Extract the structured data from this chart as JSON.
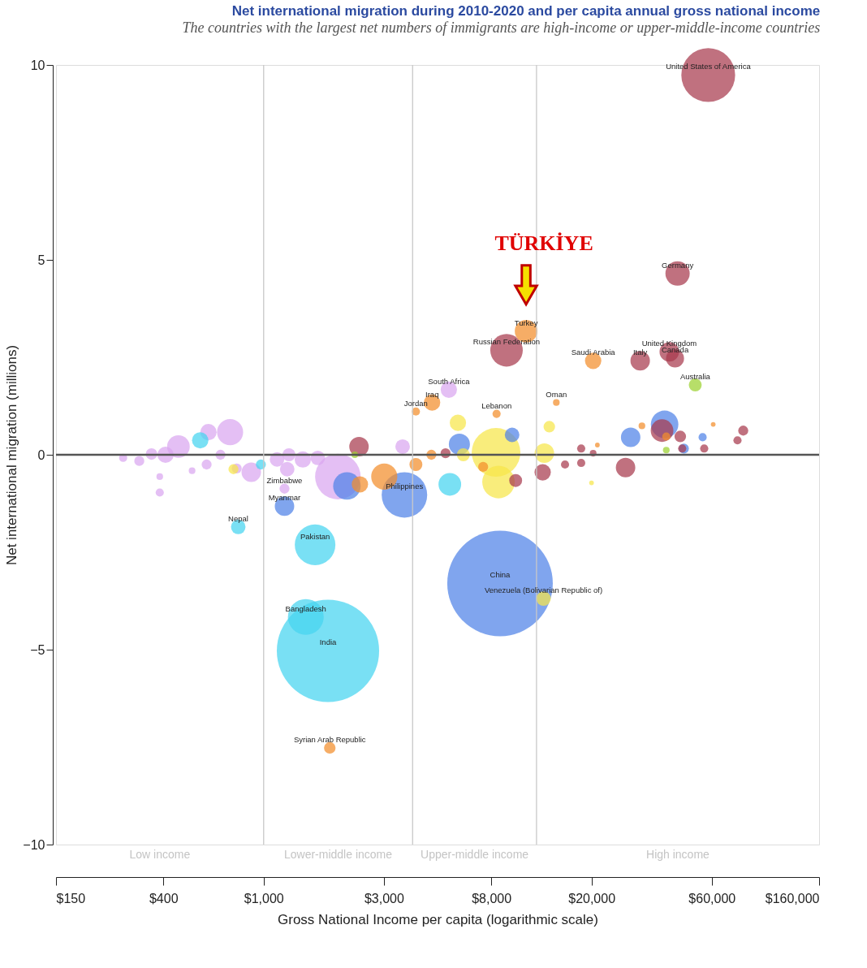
{
  "chart_data": {
    "type": "bubble",
    "title": "Net international migration during 2010-2020 and per capita annual gross national income",
    "subtitle": "The countries with the largest net numbers of immigrants are high-income or upper-middle-income countries",
    "xlabel": "Gross National Income per capita (logarithmic scale)",
    "ylabel": "Net international migration (millions)",
    "log": "x",
    "grid": false,
    "xlim": [
      150,
      160000
    ],
    "xticks": [
      {
        "value": 150,
        "label": "$150"
      },
      {
        "value": 400,
        "label": "$400"
      },
      {
        "value": 1000,
        "label": "$1,000"
      },
      {
        "value": 3000,
        "label": "$3,000"
      },
      {
        "value": 8000,
        "label": "$8,000"
      },
      {
        "value": 20000,
        "label": "$20,000"
      },
      {
        "value": 60000,
        "label": "$60,000"
      },
      {
        "value": 160000,
        "label": "$160,000"
      }
    ],
    "ylim": [
      -10,
      10
    ],
    "yticks": [
      -10,
      -5,
      0,
      5,
      10
    ],
    "series": [
      {
        "color": "#d9a6f0",
        "x": [
          5430,
          1210,
          277,
          321,
          359,
          408,
          459,
          387,
          387,
          520,
          604,
          594,
          736,
          674,
          782,
          893,
          1130,
          1260,
          1430,
          1640,
          1970,
          3560,
          1240
        ],
        "values": [
          1.67,
          -0.87,
          -0.08,
          -0.16,
          0.02,
          0,
          0.21,
          -0.56,
          -0.97,
          -0.41,
          0.58,
          -0.25,
          0.58,
          0,
          -0.35,
          -0.45,
          -0.12,
          0,
          -0.12,
          -0.08,
          -0.56,
          0.21,
          -0.37
        ],
        "sizes": [
          0.024,
          0.009,
          0.006,
          0.009,
          0.012,
          0.024,
          0.046,
          0.004,
          0.006,
          0.004,
          0.024,
          0.009,
          0.061,
          0.009,
          0.009,
          0.034,
          0.019,
          0.015,
          0.024,
          0.019,
          0.186,
          0.019,
          0.019
        ]
      },
      {
        "color": "#45d4f0",
        "x": [
          793,
          1600,
          1470,
          1800,
          560,
          975,
          5480
        ],
        "values": [
          -1.85,
          -2.31,
          -4.16,
          -5.03,
          0.37,
          -0.25,
          -0.76
        ],
        "sizes": [
          0.019,
          0.148,
          0.115,
          0.94,
          0.024,
          0.009,
          0.046
        ]
      },
      {
        "color": "#4f82e8",
        "x": [
          8670,
          3620,
          1210,
          2140,
          5980,
          9680,
          28600,
          39000,
          46500,
          55200
        ],
        "values": [
          -3.3,
          -1.03,
          -1.32,
          -0.8,
          0.27,
          0.51,
          0.45,
          0.78,
          0.16,
          0.45
        ],
        "sizes": [
          1,
          0.186,
          0.034,
          0.068,
          0.04,
          0.019,
          0.034,
          0.068,
          0.009,
          0.006
        ]
      },
      {
        "color": "#f28e2b",
        "x": [
          11000,
          20300,
          4660,
          4020,
          14500,
          8400,
          1830,
          3010,
          2410,
          4020,
          4630,
          7430,
          31700,
          39600,
          60800,
          21100
        ],
        "values": [
          3.17,
          2.41,
          1.34,
          1.11,
          1.34,
          1.05,
          -7.52,
          -0.56,
          -0.76,
          -0.25,
          0,
          -0.31,
          0.74,
          0.47,
          0.78,
          0.25
        ],
        "sizes": [
          0.046,
          0.024,
          0.024,
          0.006,
          0.004,
          0.006,
          0.012,
          0.061,
          0.024,
          0.015,
          0.009,
          0.009,
          0.004,
          0.006,
          0.002,
          0.002
        ]
      },
      {
        "color": "#f7e64a",
        "x": [
          12900,
          759,
          5900,
          8360,
          8550,
          13600,
          13000,
          20000,
          6200
        ],
        "values": [
          -3.69,
          -0.37,
          0.82,
          0.06,
          -0.7,
          0.72,
          0.04,
          -0.72,
          0
        ],
        "sizes": [
          0.019,
          0.009,
          0.024,
          0.213,
          0.095,
          0.012,
          0.034,
          0.002,
          0.015
        ]
      },
      {
        "color": "#a83a4e",
        "x": [
          58100,
          43900,
          9200,
          40700,
          42900,
          31200,
          2390,
          10000,
          12800,
          27300,
          38100,
          45000,
          80000,
          75900,
          18200,
          15700,
          18200,
          20300,
          45800,
          56000,
          5270
        ],
        "values": [
          9.74,
          4.65,
          2.68,
          2.64,
          2.47,
          2.41,
          0.21,
          -0.66,
          -0.45,
          -0.33,
          0.62,
          0.47,
          0.62,
          0.37,
          0.16,
          -0.25,
          -0.21,
          0.04,
          0.16,
          0.16,
          0.04
        ],
        "sizes": [
          0.26,
          0.053,
          0.095,
          0.034,
          0.029,
          0.034,
          0.034,
          0.015,
          0.024,
          0.034,
          0.046,
          0.012,
          0.009,
          0.006,
          0.006,
          0.006,
          0.006,
          0.004,
          0.006,
          0.006,
          0.009
        ]
      },
      {
        "color": "#9bd12f",
        "x": [
          51600,
          39600,
          2300
        ],
        "values": [
          1.79,
          0.12,
          0
        ],
        "sizes": [
          0.015,
          0.004,
          0.004
        ]
      }
    ],
    "ref_lines": [
      {
        "axis": "y",
        "value": 0,
        "color": "#555555"
      },
      {
        "axis": "x",
        "value": 1000,
        "color": "#c8c8c8"
      },
      {
        "axis": "x",
        "value": 3900,
        "color": "#c8c8c8"
      },
      {
        "axis": "x",
        "value": 12100,
        "color": "#c8c8c8"
      }
    ],
    "annotations": [
      "TÜRKİYE",
      {
        "text": "Turkey",
        "x": 11000,
        "y": 3.17
      },
      "Low income",
      "Lower-middle income",
      "Upper-middle income",
      "High income",
      {
        "text": "United States of America",
        "x": 58100,
        "y": 9.74
      },
      {
        "text": "Germany",
        "x": 43900,
        "y": 4.65
      },
      {
        "text": "Russian Federation",
        "x": 9200,
        "y": 2.68
      },
      {
        "text": "United Kingdom",
        "x": 40700,
        "y": 2.64
      },
      {
        "text": "Canada",
        "x": 42900,
        "y": 2.47
      },
      {
        "text": "Italy",
        "x": 31200,
        "y": 2.41
      },
      {
        "text": "Saudi Arabia",
        "x": 20300,
        "y": 2.41
      },
      {
        "text": "Australia",
        "x": 51600,
        "y": 1.79
      },
      {
        "text": "South Africa",
        "x": 5430,
        "y": 1.67
      },
      {
        "text": "Iraq",
        "x": 4660,
        "y": 1.34
      },
      {
        "text": "Jordan",
        "x": 4020,
        "y": 1.11
      },
      {
        "text": "Oman",
        "x": 14500,
        "y": 1.34
      },
      {
        "text": "Lebanon",
        "x": 8400,
        "y": 1.05
      },
      {
        "text": "Zimbabwe",
        "x": 1210,
        "y": -0.87
      },
      {
        "text": "Myanmar",
        "x": 1210,
        "y": -1.32
      },
      {
        "text": "Nepal",
        "x": 793,
        "y": -1.85
      },
      {
        "text": "Pakistan",
        "x": 1600,
        "y": -2.31
      },
      {
        "text": "Bangladesh",
        "x": 1470,
        "y": -4.16
      },
      {
        "text": "India",
        "x": 1800,
        "y": -5.03
      },
      {
        "text": "Syrian Arab Republic",
        "x": 1830,
        "y": -7.52
      },
      {
        "text": "Philippines",
        "x": 3620,
        "y": -1.03
      },
      {
        "text": "China",
        "x": 8670,
        "y": -3.3
      },
      {
        "text": "Venezuela (Bolivarian Republic of)",
        "x": 12900,
        "y": -3.69
      }
    ]
  }
}
